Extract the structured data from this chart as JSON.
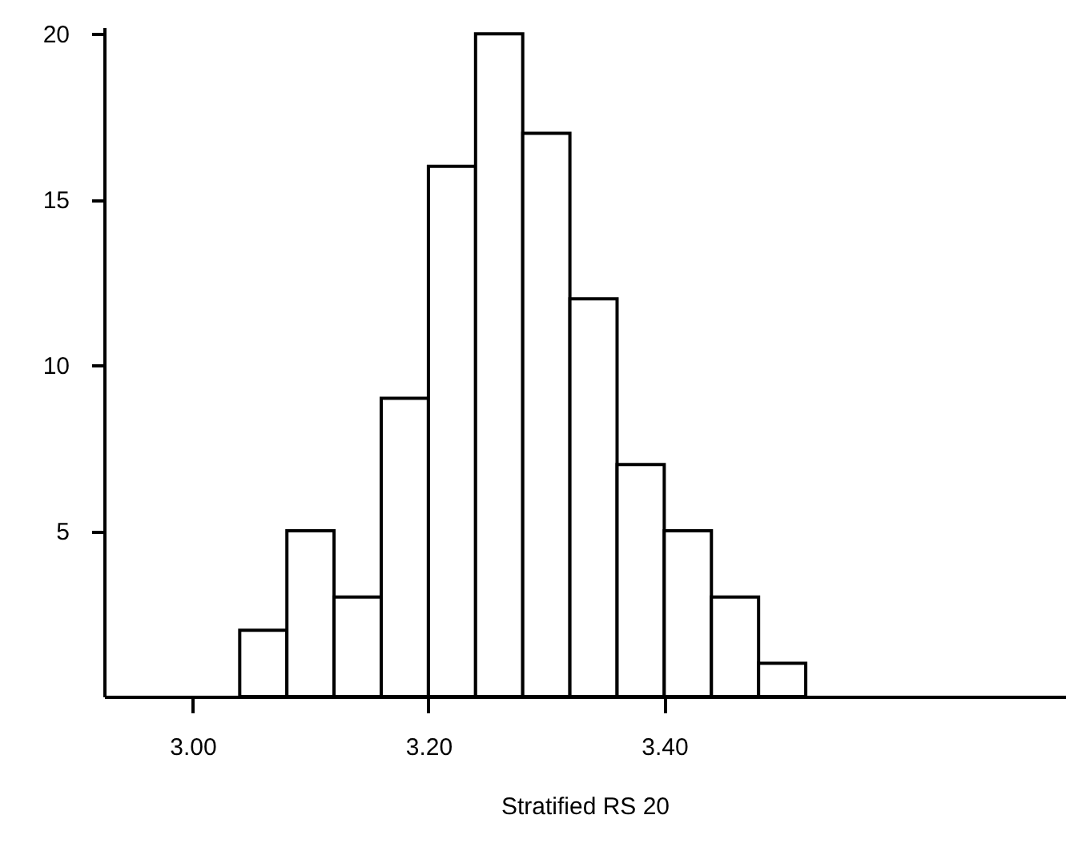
{
  "chart_data": {
    "type": "histogram",
    "xlabel": "Stratified RS 20",
    "bins": [
      3.04,
      3.08,
      3.12,
      3.16,
      3.2,
      3.24,
      3.28,
      3.32,
      3.36,
      3.4,
      3.44,
      3.48,
      3.52
    ],
    "values": [
      2,
      5,
      3,
      9,
      16,
      20,
      17,
      12,
      7,
      5,
      3,
      1
    ],
    "color": "#ffffff",
    "xlim": [
      2.925,
      3.74
    ],
    "ylim": [
      0,
      20.2
    ],
    "xticks": [
      {
        "value": 3.0,
        "label": "3.00"
      },
      {
        "value": 3.2,
        "label": "3.20"
      },
      {
        "value": 3.4,
        "label": "3.40"
      }
    ],
    "yticks": [
      5,
      10,
      15,
      20
    ],
    "grid": false
  }
}
